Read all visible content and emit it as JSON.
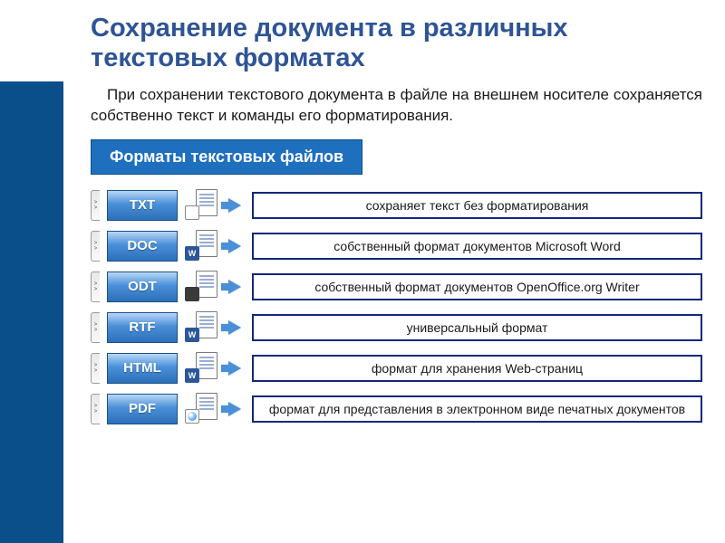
{
  "title": "Сохранение документа в различных текстовых форматах",
  "intro": "При сохранении текстового документа в файле на внешнем носителе сохраняется собственно текст и команды его форматирования.",
  "section_label": "Форматы текстовых файлов",
  "colors": {
    "left_bar": "#0b4f8a",
    "title": "#2e5496",
    "section_bg": "#1f6fbf",
    "badge_gradient_top": "#b7d7f5",
    "badge_gradient_mid": "#4a90d9",
    "badge_gradient_bot": "#2b6fb7",
    "badge_border": "#1a4f8a",
    "desc_border": "#12287e",
    "arrow_default": "#4a90d9"
  },
  "formats": [
    {
      "code": "TXT",
      "icon_style": "mini-txt",
      "icon_glyph": "",
      "arrow_color": "#4a90d9",
      "desc": "сохраняет текст без форматирования"
    },
    {
      "code": "DOC",
      "icon_style": "mini-w",
      "icon_glyph": "W",
      "arrow_color": "#4a90d9",
      "desc": "собственный формат документов Microsoft Word"
    },
    {
      "code": "ODT",
      "icon_style": "mini-odt",
      "icon_glyph": "",
      "arrow_color": "#4a90d9",
      "desc": "собственный формат документов OpenOffice.org Writer"
    },
    {
      "code": "RTF",
      "icon_style": "mini-w",
      "icon_glyph": "W",
      "arrow_color": "#4a90d9",
      "desc": "универсальный формат"
    },
    {
      "code": "HTML",
      "icon_style": "mini-w",
      "icon_glyph": "W",
      "arrow_color": "#4a90d9",
      "desc": "формат для хранения Web-страниц"
    },
    {
      "code": "PDF",
      "icon_style": "mini-pdf",
      "icon_glyph": "",
      "arrow_color": "#4a90d9",
      "desc": "формат для представления в электронном виде печатных документов"
    }
  ]
}
